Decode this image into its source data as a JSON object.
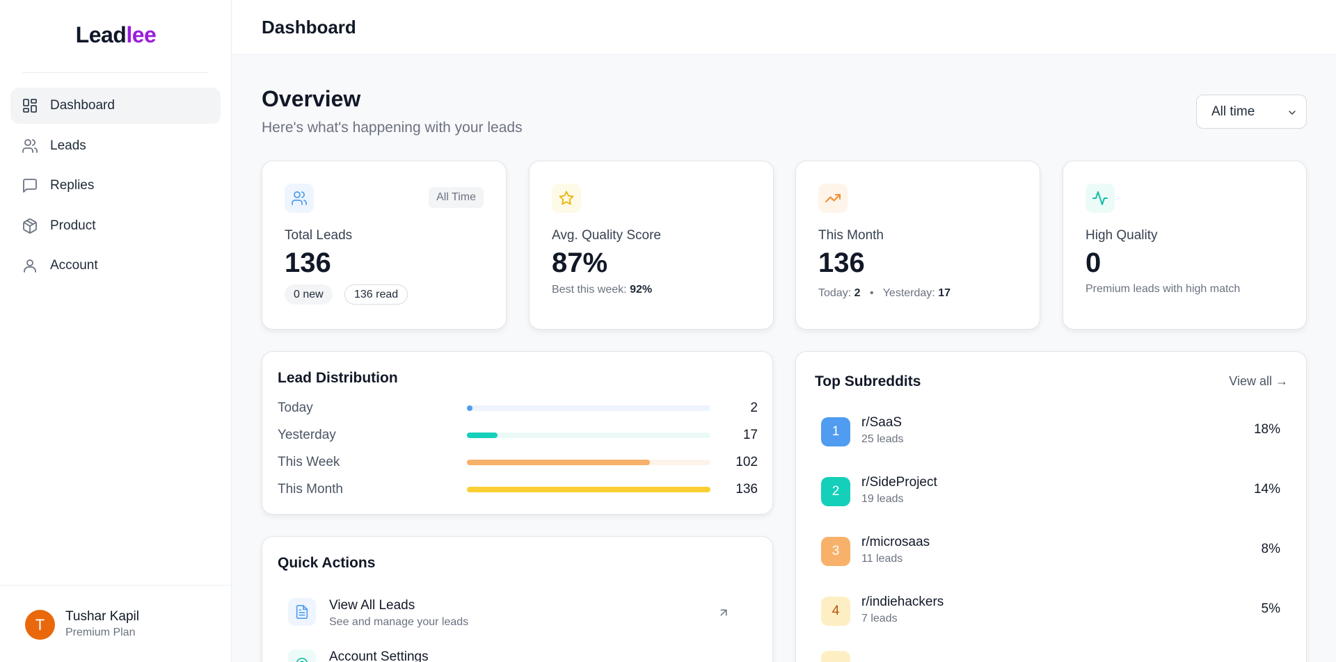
{
  "brand": {
    "part1": "Lead",
    "part2": "lee",
    "color1": "#0f172a",
    "color2": "#9b1ddc"
  },
  "sidebar": {
    "items": [
      {
        "label": "Dashboard",
        "icon": "dashboard-grid-icon",
        "active": true
      },
      {
        "label": "Leads",
        "icon": "users-icon"
      },
      {
        "label": "Replies",
        "icon": "message-square-icon"
      },
      {
        "label": "Product",
        "icon": "package-box-icon"
      },
      {
        "label": "Account",
        "icon": "user-icon"
      }
    ],
    "user": {
      "initial": "T",
      "name": "Tushar Kapil",
      "plan": "Premium Plan",
      "avatar_color": "#ea680c"
    }
  },
  "header": {
    "title": "Dashboard"
  },
  "overview": {
    "title": "Overview",
    "subtitle": "Here's what's happening with your leads",
    "range": {
      "selected": "All time"
    }
  },
  "stats": {
    "total": {
      "label": "Total Leads",
      "value": "136",
      "badge": "All Time",
      "new_pill": "0 new",
      "read_pill": "136 read",
      "icon": "users-icon"
    },
    "quality": {
      "label": "Avg. Quality Score",
      "value": "87%",
      "best_label": "Best this week:",
      "best_value": "92%",
      "icon": "star-icon"
    },
    "month": {
      "label": "This Month",
      "value": "136",
      "today_label": "Today:",
      "today_value": "2",
      "sep": "•",
      "yesterday_label": "Yesterday:",
      "yesterday_value": "17",
      "icon": "trending-up-icon"
    },
    "high": {
      "label": "High Quality",
      "value": "0",
      "note": "Premium leads with high match",
      "icon": "activity-pulse-icon"
    }
  },
  "distribution": {
    "title": "Lead Distribution",
    "max": 136,
    "rows": [
      {
        "label": "Today",
        "value": 2,
        "display": "2",
        "color": "#4f9cf0",
        "track": "#edf4fd"
      },
      {
        "label": "Yesterday",
        "value": 17,
        "display": "17",
        "color": "#14cfb9",
        "track": "#ebfaf7"
      },
      {
        "label": "This Week",
        "value": 102,
        "display": "102",
        "color": "#f8b16a",
        "track": "#fef3e9"
      },
      {
        "label": "This Month",
        "value": 136,
        "display": "136",
        "color": "#fbcf33",
        "track": "#fef9e6"
      }
    ]
  },
  "quick_actions": {
    "title": "Quick Actions",
    "items": [
      {
        "title": "View All Leads",
        "subtitle": "See and manage your leads",
        "icon": "file-text-icon"
      },
      {
        "title": "Account Settings",
        "subtitle": "",
        "icon": "settings-icon"
      }
    ]
  },
  "top_subreddits": {
    "title": "Top Subreddits",
    "view_all": "View all →",
    "items": [
      {
        "rank": "1",
        "name": "r/SaaS",
        "leads": "25 leads",
        "pct": "18%",
        "color": "#4f9cf0",
        "text": "#ffffff"
      },
      {
        "rank": "2",
        "name": "r/SideProject",
        "leads": "19 leads",
        "pct": "14%",
        "color": "#14cfb9",
        "text": "#ffffff"
      },
      {
        "rank": "3",
        "name": "r/microsaas",
        "leads": "11 leads",
        "pct": "8%",
        "color": "#f8b16a",
        "text": "#ffffff"
      },
      {
        "rank": "4",
        "name": "r/indiehackers",
        "leads": "7 leads",
        "pct": "5%",
        "color": "#fdefc3",
        "text": "#b45309"
      }
    ]
  }
}
